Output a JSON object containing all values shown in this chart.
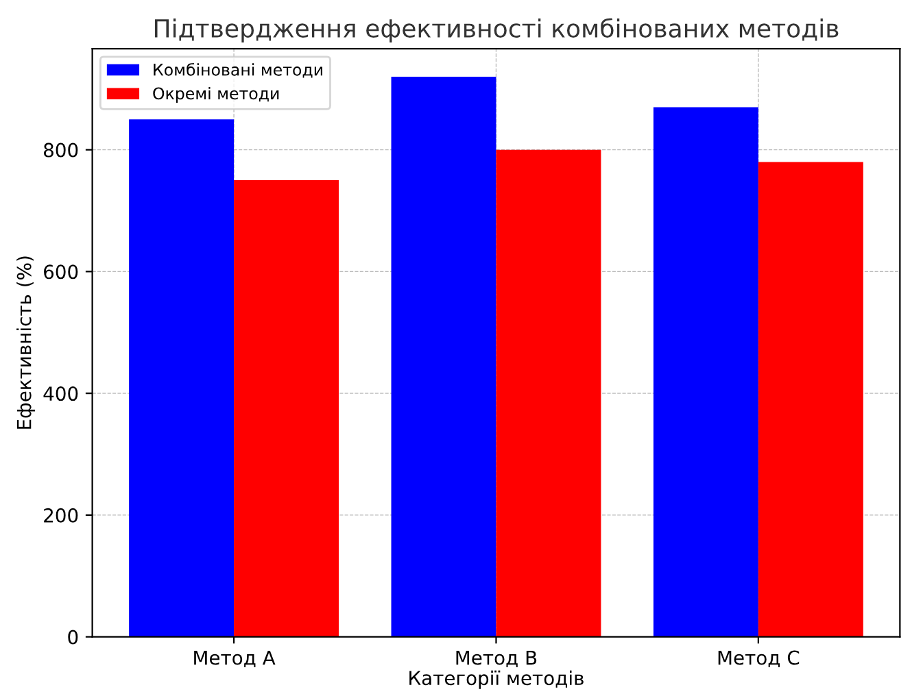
{
  "chart_data": {
    "type": "bar",
    "title": "Підтвердження ефективності комбінованих методів",
    "xlabel": "Категорії методів",
    "ylabel": "Ефективність (%)",
    "categories": [
      "Метод A",
      "Метод B",
      "Метод C"
    ],
    "series": [
      {
        "name": "Комбіновані методи",
        "color": "#0000ff",
        "values": [
          850,
          920,
          870
        ]
      },
      {
        "name": "Окремі методи",
        "color": "#ff0000",
        "values": [
          750,
          800,
          780
        ]
      }
    ],
    "ylim": [
      0,
      966
    ],
    "yticks": [
      0,
      200,
      400,
      600,
      800
    ],
    "grid": true,
    "legend": "top left"
  }
}
